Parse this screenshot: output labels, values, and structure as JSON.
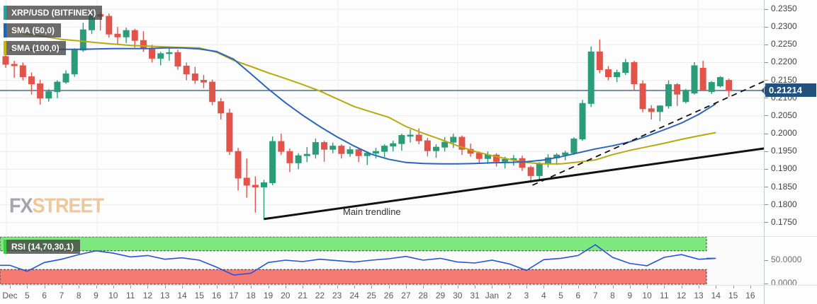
{
  "legend": {
    "rows": [
      {
        "label": "XRP/USD (BITFINEX)",
        "accent": "#26a69a"
      },
      {
        "label": "SMA (50,0)",
        "accent": "#1565c0"
      },
      {
        "label": "SMA (100,0)",
        "accent": "#c9b403"
      }
    ],
    "rsi": {
      "label": "RSI (14,70,30,1)",
      "accent": "#35d435"
    }
  },
  "watermark": {
    "fx": "FX",
    "street": "STREET",
    "fx_color": "#9b9ba6",
    "street_color": "#edc38f"
  },
  "price_badge": "0.21214",
  "annotations": {
    "main_trendline_label": "Main trendline"
  },
  "colors": {
    "up": "#2a9c77",
    "down": "#e1544a",
    "sma50": "#2865c0",
    "sma100": "#b9a90b",
    "price_line": "#2a4d72",
    "badge_bg": "#20517f",
    "rsi_line": "#2753d6",
    "rsi_green_band": "#7de87d",
    "rsi_red_band": "#f47a72",
    "band_edge": "#3c3c3c",
    "grid": "#ececef",
    "vgrid": "#ededf1",
    "trendline": "#111111",
    "axis_text": "#424242",
    "border": "#c7cbd3"
  },
  "chart_data": {
    "type": "candlestick",
    "symbol": "XRP/USD",
    "exchange": "BITFINEX",
    "period": "12h bars, two per date label",
    "title": "XRP/USD (BITFINEX)",
    "ylim": [
      0.173,
      0.2376
    ],
    "price_axis_ticks": [
      0.235,
      0.23,
      0.225,
      0.22,
      0.215,
      0.21,
      0.205,
      0.2,
      0.195,
      0.19,
      0.185,
      0.18,
      0.175
    ],
    "current_price": 0.21214,
    "date_labels": [
      "Dec",
      "5",
      "6",
      "7",
      "8",
      "9",
      "10",
      "11",
      "12",
      "13",
      "14",
      "15",
      "16",
      "17",
      "18",
      "19",
      "20",
      "21",
      "22",
      "23",
      "24",
      "25",
      "26",
      "27",
      "28",
      "29",
      "30",
      "31",
      "Jan",
      "2",
      "3",
      "4",
      "5",
      "6",
      "7",
      "8",
      "9",
      "10",
      "11",
      "12",
      "13",
      "14",
      "15",
      "16"
    ],
    "candles": [
      [
        "Dec 4",
        0.2217,
        0.2228,
        0.2185,
        0.2195
      ],
      [
        "Dec 4",
        0.2195,
        0.2205,
        0.2157,
        0.2191
      ],
      [
        "Dec 5",
        0.2191,
        0.22,
        0.215,
        0.216
      ],
      [
        "Dec 5",
        0.216,
        0.2172,
        0.211,
        0.214
      ],
      [
        "Dec 6",
        0.214,
        0.2152,
        0.2082,
        0.21
      ],
      [
        "Dec 6",
        0.21,
        0.2125,
        0.209,
        0.2118
      ],
      [
        "Dec 7",
        0.2118,
        0.215,
        0.21,
        0.2145
      ],
      [
        "Dec 7",
        0.2145,
        0.2178,
        0.214,
        0.2168
      ],
      [
        "Dec 8",
        0.2168,
        0.224,
        0.216,
        0.2235
      ],
      [
        "Dec 8",
        0.2235,
        0.2312,
        0.223,
        0.2292
      ],
      [
        "Dec 9",
        0.2292,
        0.2345,
        0.228,
        0.2335
      ],
      [
        "Dec 9",
        0.2335,
        0.2342,
        0.229,
        0.233
      ],
      [
        "Dec 10",
        0.233,
        0.2338,
        0.227,
        0.228
      ],
      [
        "Dec 10",
        0.228,
        0.23,
        0.2252,
        0.2272
      ],
      [
        "Dec 11",
        0.2272,
        0.2298,
        0.2255,
        0.229
      ],
      [
        "Dec 11",
        0.229,
        0.2295,
        0.2242,
        0.2262
      ],
      [
        "Dec 12",
        0.2262,
        0.2288,
        0.223,
        0.224
      ],
      [
        "Dec 12",
        0.224,
        0.225,
        0.22,
        0.2212
      ],
      [
        "Dec 13",
        0.2212,
        0.223,
        0.2192,
        0.2225
      ],
      [
        "Dec 13",
        0.2225,
        0.2242,
        0.2205,
        0.2228
      ],
      [
        "Dec 14",
        0.2228,
        0.2236,
        0.218,
        0.219
      ],
      [
        "Dec 14",
        0.219,
        0.22,
        0.215,
        0.2168
      ],
      [
        "Dec 15",
        0.2168,
        0.2188,
        0.214,
        0.215
      ],
      [
        "Dec 15",
        0.215,
        0.2165,
        0.2128,
        0.2145
      ],
      [
        "Dec 16",
        0.2145,
        0.2152,
        0.208,
        0.209
      ],
      [
        "Dec 16",
        0.209,
        0.21,
        0.204,
        0.2058
      ],
      [
        "Dec 17",
        0.2058,
        0.207,
        0.194,
        0.195
      ],
      [
        "Dec 17",
        0.195,
        0.196,
        0.184,
        0.1875
      ],
      [
        "Dec 18",
        0.1875,
        0.193,
        0.182,
        0.1855
      ],
      [
        "Dec 18",
        0.1855,
        0.188,
        0.1778,
        0.185
      ],
      [
        "Dec 19",
        0.185,
        0.187,
        0.1757,
        0.1862
      ],
      [
        "Dec 19",
        0.1862,
        0.1992,
        0.1855,
        0.1978
      ],
      [
        "Dec 20",
        0.1978,
        0.2,
        0.194,
        0.195
      ],
      [
        "Dec 20",
        0.195,
        0.1958,
        0.1892,
        0.1918
      ],
      [
        "Dec 21",
        0.1918,
        0.1945,
        0.19,
        0.1938
      ],
      [
        "Dec 21",
        0.1938,
        0.1962,
        0.192,
        0.1942
      ],
      [
        "Dec 22",
        0.1942,
        0.1986,
        0.193,
        0.1975
      ],
      [
        "Dec 22",
        0.1975,
        0.198,
        0.1921,
        0.1956
      ],
      [
        "Dec 23",
        0.1956,
        0.1975,
        0.1945,
        0.1965
      ],
      [
        "Dec 23",
        0.1965,
        0.197,
        0.193,
        0.1944
      ],
      [
        "Dec 24",
        0.1944,
        0.1964,
        0.1935,
        0.1955
      ],
      [
        "Dec 24",
        0.1955,
        0.196,
        0.192,
        0.1938
      ],
      [
        "Dec 25",
        0.1938,
        0.195,
        0.1912,
        0.1945
      ],
      [
        "Dec 25",
        0.1945,
        0.196,
        0.193,
        0.195
      ],
      [
        "Dec 26",
        0.195,
        0.197,
        0.1934,
        0.1965
      ],
      [
        "Dec 26",
        0.1965,
        0.198,
        0.195,
        0.1972
      ],
      [
        "Dec 27",
        0.1972,
        0.2,
        0.1952,
        0.1995
      ],
      [
        "Dec 27",
        0.1995,
        0.2012,
        0.1975,
        0.1996
      ],
      [
        "Dec 28",
        0.1996,
        0.2015,
        0.197,
        0.198
      ],
      [
        "Dec 28",
        0.198,
        0.1988,
        0.1936,
        0.1952
      ],
      [
        "Dec 29",
        0.1952,
        0.197,
        0.1932,
        0.1962
      ],
      [
        "Dec 29",
        0.1962,
        0.199,
        0.195,
        0.1976
      ],
      [
        "Dec 30",
        0.1976,
        0.2,
        0.196,
        0.199
      ],
      [
        "Dec 30",
        0.199,
        0.1995,
        0.194,
        0.1956
      ],
      [
        "Dec 31",
        0.1956,
        0.1972,
        0.1935,
        0.1945
      ],
      [
        "Dec 31",
        0.1945,
        0.195,
        0.1918,
        0.193
      ],
      [
        "Jan 1",
        0.193,
        0.195,
        0.1915,
        0.194
      ],
      [
        "Jan 1",
        0.194,
        0.1945,
        0.1908,
        0.1922
      ],
      [
        "Jan 2",
        0.1922,
        0.1935,
        0.1902,
        0.1928
      ],
      [
        "Jan 2",
        0.1928,
        0.194,
        0.191,
        0.193
      ],
      [
        "Jan 3",
        0.193,
        0.1938,
        0.1895,
        0.1905
      ],
      [
        "Jan 3",
        0.1905,
        0.191,
        0.1862,
        0.1882
      ],
      [
        "Jan 4",
        0.1882,
        0.192,
        0.1868,
        0.1915
      ],
      [
        "Jan 4",
        0.1915,
        0.1942,
        0.1905,
        0.1932
      ],
      [
        "Jan 5",
        0.1932,
        0.1945,
        0.1912,
        0.194
      ],
      [
        "Jan 5",
        0.194,
        0.1952,
        0.1925,
        0.1946
      ],
      [
        "Jan 6",
        0.1946,
        0.199,
        0.194,
        0.1985
      ],
      [
        "Jan 6",
        0.1985,
        0.2095,
        0.198,
        0.2085
      ],
      [
        "Jan 7",
        0.2085,
        0.2245,
        0.2075,
        0.223
      ],
      [
        "Jan 7",
        0.223,
        0.2265,
        0.217,
        0.218
      ],
      [
        "Jan 8",
        0.218,
        0.219,
        0.215,
        0.216
      ],
      [
        "Jan 8",
        0.216,
        0.218,
        0.2145,
        0.2172
      ],
      [
        "Jan 9",
        0.2172,
        0.221,
        0.2165,
        0.22
      ],
      [
        "Jan 9",
        0.22,
        0.2205,
        0.212,
        0.214
      ],
      [
        "Jan 10",
        0.214,
        0.215,
        0.206,
        0.207
      ],
      [
        "Jan 10",
        0.207,
        0.208,
        0.204,
        0.2062
      ],
      [
        "Jan 11",
        0.2062,
        0.208,
        0.2035,
        0.2078
      ],
      [
        "Jan 11",
        0.2078,
        0.215,
        0.207,
        0.2138
      ],
      [
        "Jan 12",
        0.2138,
        0.2142,
        0.2078,
        0.2111
      ],
      [
        "Jan 12",
        0.209,
        0.2126,
        0.2085,
        0.2122
      ],
      [
        "Jan 13",
        0.2114,
        0.2201,
        0.211,
        0.2191
      ],
      [
        "Jan 13",
        0.2184,
        0.2205,
        0.212,
        0.2124
      ],
      [
        "Jan 14",
        0.2118,
        0.2148,
        0.2112,
        0.2144
      ],
      [
        "Jan 14",
        0.2134,
        0.2162,
        0.213,
        0.2158
      ],
      [
        "Jan 15",
        0.215,
        0.2155,
        0.2104,
        0.2121
      ]
    ],
    "candle_format": [
      "date",
      "open",
      "high",
      "low",
      "close"
    ],
    "sma50_by_day": [
      0.2234,
      0.2235,
      0.2236,
      0.2237,
      0.2237,
      0.2238,
      0.2239,
      0.2239,
      0.2239,
      0.2241,
      0.2241,
      0.2238,
      0.2231,
      0.2209,
      0.2168,
      0.2126,
      0.2087,
      0.2052,
      0.202,
      0.1991,
      0.1965,
      0.1942,
      0.1928,
      0.1919,
      0.1916,
      0.1915,
      0.1915,
      0.1916,
      0.1918,
      0.1919,
      0.1921,
      0.1926,
      0.1935,
      0.1946,
      0.1957,
      0.1966,
      0.1977,
      0.1993,
      0.2011,
      0.203,
      0.2054,
      0.2084
    ],
    "sma100_by_day": [
      0.2288,
      0.228,
      0.2273,
      0.2265,
      0.2261,
      0.2256,
      0.2252,
      0.2248,
      0.2246,
      0.2244,
      0.2242,
      0.2241,
      0.2229,
      0.2206,
      0.2189,
      0.2171,
      0.2155,
      0.2138,
      0.212,
      0.2098,
      0.2076,
      0.2061,
      0.2046,
      0.202,
      0.2001,
      0.1984,
      0.1966,
      0.195,
      0.1938,
      0.1928,
      0.1919,
      0.1915,
      0.1915,
      0.192,
      0.1926,
      0.1941,
      0.1953,
      0.1963,
      0.1973,
      0.1984,
      0.1994,
      0.2003
    ],
    "rsi": {
      "label": "RSI (14,70,30,1)",
      "levels": {
        "upper": 70,
        "lower": 30,
        "axis_ticks": [
          "50.0000",
          "0.0000"
        ]
      },
      "values_by_day": [
        39,
        26,
        45,
        52,
        62,
        70,
        65,
        57,
        60,
        52,
        55,
        50,
        35,
        18,
        22,
        45,
        50,
        47,
        52,
        49,
        46,
        50,
        53,
        58,
        50,
        54,
        46,
        44,
        50,
        42,
        28,
        51,
        54,
        60,
        83,
        56,
        43,
        38,
        56,
        62,
        52,
        54
      ]
    },
    "trendlines": [
      {
        "name": "main-trendline",
        "style": "solid",
        "label": "Main trendline",
        "from_day": 14.76,
        "from_price": 0.176,
        "to_day": 43.88,
        "to_price": 0.1959
      },
      {
        "name": "ascending-dashed-trendline",
        "style": "dashed",
        "from_day": 30.35,
        "from_price": 0.1855,
        "to_day": 43.88,
        "to_price": 0.2149
      }
    ],
    "grid": true,
    "legend_position": "top-left"
  }
}
